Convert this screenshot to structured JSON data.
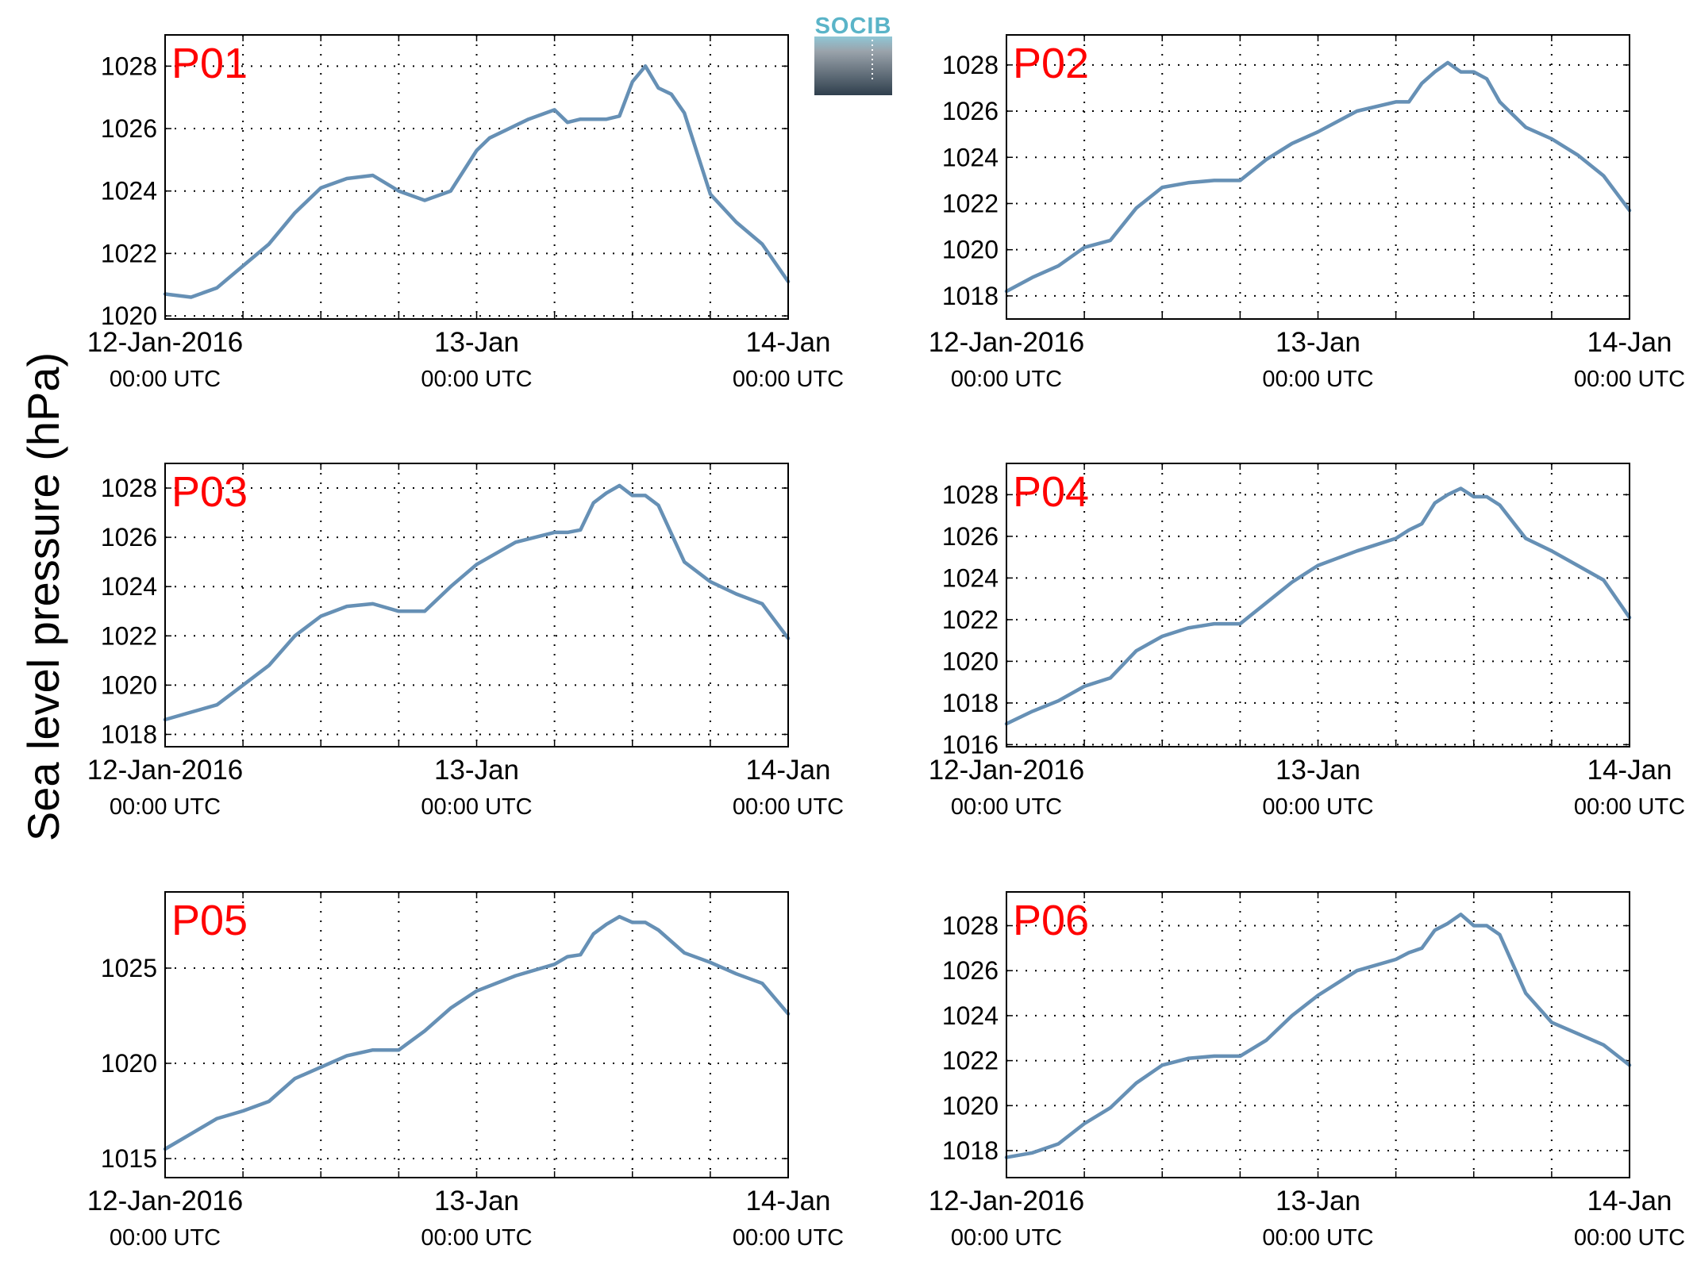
{
  "figure": {
    "ylabel": "Sea level pressure (hPa)",
    "logo": {
      "text": "SOCIB",
      "color": "#5ab4c8"
    },
    "series_color": "#6690b5",
    "title_color": "#ff0000"
  },
  "chart_data": [
    {
      "type": "line",
      "title": "P01",
      "xlabel": "",
      "ylabel": "Sea level pressure (hPa)",
      "xlim": [
        "2016-01-12T00:00",
        "2016-01-14T00:00"
      ],
      "xtick_labels": [
        [
          "12-Jan-2016",
          "00:00 UTC"
        ],
        [
          "13-Jan",
          "00:00 UTC"
        ],
        [
          "14-Jan",
          "00:00 UTC"
        ]
      ],
      "ylim": [
        1019.9,
        1029
      ],
      "yticks": [
        1020,
        1022,
        1024,
        1026,
        1028
      ],
      "grid": true,
      "x": [
        "2016-01-12T00:00",
        "2016-01-12T02:00",
        "2016-01-12T04:00",
        "2016-01-12T06:00",
        "2016-01-12T08:00",
        "2016-01-12T10:00",
        "2016-01-12T12:00",
        "2016-01-12T14:00",
        "2016-01-12T16:00",
        "2016-01-12T18:00",
        "2016-01-12T20:00",
        "2016-01-12T22:00",
        "2016-01-13T00:00",
        "2016-01-13T01:00",
        "2016-01-13T04:00",
        "2016-01-13T06:00",
        "2016-01-13T07:00",
        "2016-01-13T08:00",
        "2016-01-13T09:00",
        "2016-01-13T10:00",
        "2016-01-13T11:00",
        "2016-01-13T12:00",
        "2016-01-13T13:00",
        "2016-01-13T14:00",
        "2016-01-13T15:00",
        "2016-01-13T16:00",
        "2016-01-13T18:00",
        "2016-01-13T20:00",
        "2016-01-13T22:00",
        "2016-01-14T00:00"
      ],
      "series": [
        {
          "values": [
            1020.7,
            1020.6,
            1020.9,
            1021.6,
            1022.3,
            1023.3,
            1024.1,
            1024.4,
            1024.5,
            1024.0,
            1023.7,
            1024.0,
            1025.3,
            1025.7,
            1026.3,
            1026.6,
            1026.2,
            1026.3,
            1026.3,
            1026.3,
            1026.4,
            1027.5,
            1028.0,
            1027.3,
            1027.1,
            1026.5,
            1023.9,
            1023.0,
            1022.3,
            1021.1
          ]
        }
      ]
    },
    {
      "type": "line",
      "title": "P02",
      "xlabel": "",
      "ylabel": "Sea level pressure (hPa)",
      "xlim": [
        "2016-01-12T00:00",
        "2016-01-14T00:00"
      ],
      "xtick_labels": [
        [
          "12-Jan-2016",
          "00:00 UTC"
        ],
        [
          "13-Jan",
          "00:00 UTC"
        ],
        [
          "14-Jan",
          "00:00 UTC"
        ]
      ],
      "ylim": [
        1017,
        1029.3
      ],
      "yticks": [
        1018,
        1020,
        1022,
        1024,
        1026,
        1028
      ],
      "grid": true,
      "x": [
        "2016-01-12T00:00",
        "2016-01-12T02:00",
        "2016-01-12T04:00",
        "2016-01-12T06:00",
        "2016-01-12T08:00",
        "2016-01-12T10:00",
        "2016-01-12T12:00",
        "2016-01-12T14:00",
        "2016-01-12T16:00",
        "2016-01-12T18:00",
        "2016-01-12T20:00",
        "2016-01-12T22:00",
        "2016-01-13T00:00",
        "2016-01-13T03:00",
        "2016-01-13T06:00",
        "2016-01-13T07:00",
        "2016-01-13T08:00",
        "2016-01-13T09:00",
        "2016-01-13T10:00",
        "2016-01-13T11:00",
        "2016-01-13T12:00",
        "2016-01-13T13:00",
        "2016-01-13T14:00",
        "2016-01-13T16:00",
        "2016-01-13T18:00",
        "2016-01-13T20:00",
        "2016-01-13T22:00",
        "2016-01-14T00:00"
      ],
      "series": [
        {
          "values": [
            1018.2,
            1018.8,
            1019.3,
            1020.1,
            1020.4,
            1021.8,
            1022.7,
            1022.9,
            1023.0,
            1023.0,
            1023.9,
            1024.6,
            1025.1,
            1026.0,
            1026.4,
            1026.4,
            1027.2,
            1027.7,
            1028.1,
            1027.7,
            1027.7,
            1027.4,
            1026.4,
            1025.3,
            1024.8,
            1024.1,
            1023.2,
            1021.7
          ]
        }
      ]
    },
    {
      "type": "line",
      "title": "P03",
      "xlabel": "",
      "ylabel": "Sea level pressure (hPa)",
      "xlim": [
        "2016-01-12T00:00",
        "2016-01-14T00:00"
      ],
      "xtick_labels": [
        [
          "12-Jan-2016",
          "00:00 UTC"
        ],
        [
          "13-Jan",
          "00:00 UTC"
        ],
        [
          "14-Jan",
          "00:00 UTC"
        ]
      ],
      "ylim": [
        1017.5,
        1029
      ],
      "yticks": [
        1018,
        1020,
        1022,
        1024,
        1026,
        1028
      ],
      "grid": true,
      "x": [
        "2016-01-12T00:00",
        "2016-01-12T02:00",
        "2016-01-12T04:00",
        "2016-01-12T06:00",
        "2016-01-12T08:00",
        "2016-01-12T10:00",
        "2016-01-12T12:00",
        "2016-01-12T14:00",
        "2016-01-12T16:00",
        "2016-01-12T18:00",
        "2016-01-12T20:00",
        "2016-01-12T22:00",
        "2016-01-13T00:00",
        "2016-01-13T03:00",
        "2016-01-13T06:00",
        "2016-01-13T07:00",
        "2016-01-13T08:00",
        "2016-01-13T09:00",
        "2016-01-13T10:00",
        "2016-01-13T11:00",
        "2016-01-13T12:00",
        "2016-01-13T13:00",
        "2016-01-13T14:00",
        "2016-01-13T16:00",
        "2016-01-13T18:00",
        "2016-01-13T20:00",
        "2016-01-13T22:00",
        "2016-01-14T00:00"
      ],
      "series": [
        {
          "values": [
            1018.6,
            1018.9,
            1019.2,
            1020.0,
            1020.8,
            1022.0,
            1022.8,
            1023.2,
            1023.3,
            1023.0,
            1023.0,
            1024.0,
            1024.9,
            1025.8,
            1026.2,
            1026.2,
            1026.3,
            1027.4,
            1027.8,
            1028.1,
            1027.7,
            1027.7,
            1027.3,
            1025.0,
            1024.2,
            1023.7,
            1023.3,
            1021.9
          ]
        }
      ]
    },
    {
      "type": "line",
      "title": "P04",
      "xlabel": "",
      "ylabel": "Sea level pressure (hPa)",
      "xlim": [
        "2016-01-12T00:00",
        "2016-01-14T00:00"
      ],
      "xtick_labels": [
        [
          "12-Jan-2016",
          "00:00 UTC"
        ],
        [
          "13-Jan",
          "00:00 UTC"
        ],
        [
          "14-Jan",
          "00:00 UTC"
        ]
      ],
      "ylim": [
        1015.9,
        1029.5
      ],
      "yticks": [
        1016,
        1018,
        1020,
        1022,
        1024,
        1026,
        1028
      ],
      "grid": true,
      "x": [
        "2016-01-12T00:00",
        "2016-01-12T02:00",
        "2016-01-12T04:00",
        "2016-01-12T06:00",
        "2016-01-12T08:00",
        "2016-01-12T10:00",
        "2016-01-12T12:00",
        "2016-01-12T14:00",
        "2016-01-12T16:00",
        "2016-01-12T18:00",
        "2016-01-12T20:00",
        "2016-01-12T22:00",
        "2016-01-13T00:00",
        "2016-01-13T03:00",
        "2016-01-13T06:00",
        "2016-01-13T07:00",
        "2016-01-13T08:00",
        "2016-01-13T09:00",
        "2016-01-13T10:00",
        "2016-01-13T11:00",
        "2016-01-13T12:00",
        "2016-01-13T13:00",
        "2016-01-13T14:00",
        "2016-01-13T16:00",
        "2016-01-13T18:00",
        "2016-01-13T20:00",
        "2016-01-13T22:00",
        "2016-01-14T00:00"
      ],
      "series": [
        {
          "values": [
            1017.0,
            1017.6,
            1018.1,
            1018.8,
            1019.2,
            1020.5,
            1021.2,
            1021.6,
            1021.8,
            1021.8,
            1022.8,
            1023.8,
            1024.6,
            1025.3,
            1025.9,
            1026.3,
            1026.6,
            1027.6,
            1028.0,
            1028.3,
            1027.9,
            1027.9,
            1027.5,
            1025.9,
            1025.3,
            1024.6,
            1023.9,
            1022.1
          ]
        }
      ]
    },
    {
      "type": "line",
      "title": "P05",
      "xlabel": "",
      "ylabel": "Sea level pressure (hPa)",
      "xlim": [
        "2016-01-12T00:00",
        "2016-01-14T00:00"
      ],
      "xtick_labels": [
        [
          "12-Jan-2016",
          "00:00 UTC"
        ],
        [
          "13-Jan",
          "00:00 UTC"
        ],
        [
          "14-Jan",
          "00:00 UTC"
        ]
      ],
      "ylim": [
        1014,
        1029
      ],
      "yticks": [
        1015,
        1020,
        1025
      ],
      "grid": true,
      "x": [
        "2016-01-12T00:00",
        "2016-01-12T02:00",
        "2016-01-12T04:00",
        "2016-01-12T06:00",
        "2016-01-12T08:00",
        "2016-01-12T10:00",
        "2016-01-12T12:00",
        "2016-01-12T14:00",
        "2016-01-12T16:00",
        "2016-01-12T18:00",
        "2016-01-12T20:00",
        "2016-01-12T22:00",
        "2016-01-13T00:00",
        "2016-01-13T03:00",
        "2016-01-13T06:00",
        "2016-01-13T07:00",
        "2016-01-13T08:00",
        "2016-01-13T09:00",
        "2016-01-13T10:00",
        "2016-01-13T11:00",
        "2016-01-13T12:00",
        "2016-01-13T13:00",
        "2016-01-13T14:00",
        "2016-01-13T16:00",
        "2016-01-13T18:00",
        "2016-01-13T20:00",
        "2016-01-13T22:00",
        "2016-01-14T00:00"
      ],
      "series": [
        {
          "values": [
            1015.5,
            1016.3,
            1017.1,
            1017.5,
            1018.0,
            1019.2,
            1019.8,
            1020.4,
            1020.7,
            1020.7,
            1021.7,
            1022.9,
            1023.8,
            1024.6,
            1025.2,
            1025.6,
            1025.7,
            1026.8,
            1027.3,
            1027.7,
            1027.4,
            1027.4,
            1027.0,
            1025.8,
            1025.3,
            1024.7,
            1024.2,
            1022.6
          ]
        }
      ]
    },
    {
      "type": "line",
      "title": "P06",
      "xlabel": "",
      "ylabel": "Sea level pressure (hPa)",
      "xlim": [
        "2016-01-12T00:00",
        "2016-01-14T00:00"
      ],
      "xtick_labels": [
        [
          "12-Jan-2016",
          "00:00 UTC"
        ],
        [
          "13-Jan",
          "00:00 UTC"
        ],
        [
          "14-Jan",
          "00:00 UTC"
        ]
      ],
      "ylim": [
        1016.8,
        1029.5
      ],
      "yticks": [
        1018,
        1020,
        1022,
        1024,
        1026,
        1028
      ],
      "grid": true,
      "x": [
        "2016-01-12T00:00",
        "2016-01-12T02:00",
        "2016-01-12T04:00",
        "2016-01-12T06:00",
        "2016-01-12T08:00",
        "2016-01-12T10:00",
        "2016-01-12T12:00",
        "2016-01-12T14:00",
        "2016-01-12T16:00",
        "2016-01-12T18:00",
        "2016-01-12T20:00",
        "2016-01-12T22:00",
        "2016-01-13T00:00",
        "2016-01-13T03:00",
        "2016-01-13T06:00",
        "2016-01-13T07:00",
        "2016-01-13T08:00",
        "2016-01-13T09:00",
        "2016-01-13T10:00",
        "2016-01-13T11:00",
        "2016-01-13T12:00",
        "2016-01-13T13:00",
        "2016-01-13T14:00",
        "2016-01-13T16:00",
        "2016-01-13T18:00",
        "2016-01-13T20:00",
        "2016-01-13T22:00",
        "2016-01-14T00:00"
      ],
      "series": [
        {
          "values": [
            1017.7,
            1017.9,
            1018.3,
            1019.2,
            1019.9,
            1021.0,
            1021.8,
            1022.1,
            1022.2,
            1022.2,
            1022.9,
            1024.0,
            1024.9,
            1026.0,
            1026.5,
            1026.8,
            1027.0,
            1027.8,
            1028.1,
            1028.5,
            1028.0,
            1028.0,
            1027.6,
            1025.0,
            1023.7,
            1023.2,
            1022.7,
            1021.8
          ]
        }
      ]
    }
  ]
}
